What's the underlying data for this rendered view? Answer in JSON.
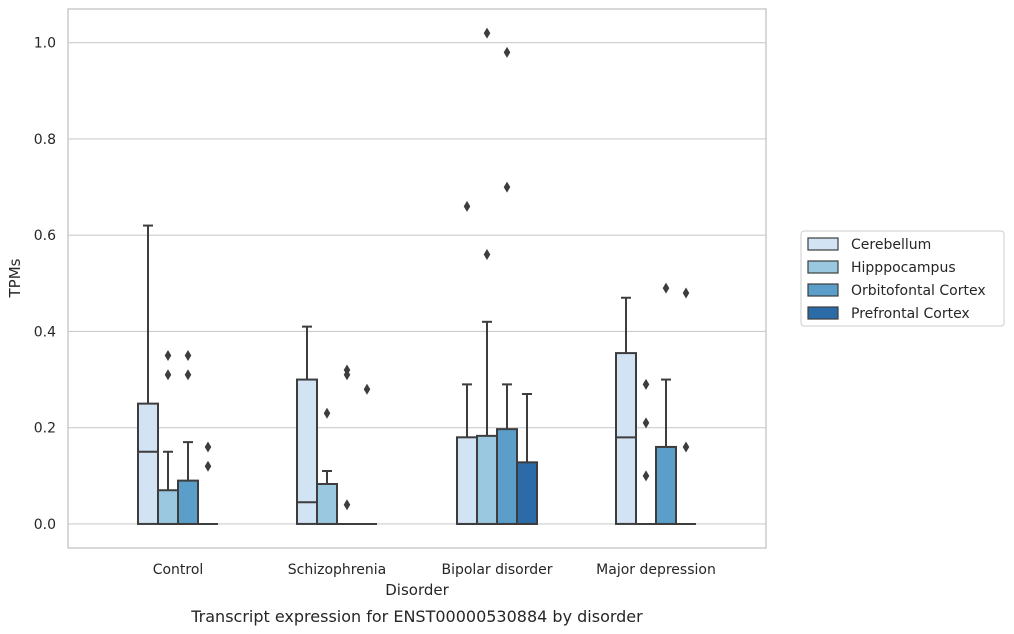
{
  "chart_data": {
    "type": "box",
    "xlabel": "Disorder",
    "ylabel": "TPMs",
    "caption": "Transcript expression for ENST00000530884 by disorder",
    "categories": [
      "Control",
      "Schizophrenia",
      "Bipolar disorder",
      "Major depression"
    ],
    "ylim": [
      -0.05,
      1.07
    ],
    "yticks": [
      0.0,
      0.2,
      0.4,
      0.6,
      0.8,
      1.0
    ],
    "ytick_labels": [
      "0.0",
      "0.2",
      "0.4",
      "0.6",
      "0.8",
      "1.0"
    ],
    "grid": true,
    "legend_position": "right",
    "series": [
      {
        "name": "Cerebellum",
        "color": "#d2e3f3",
        "boxes": [
          {
            "q1": 0.0,
            "median": 0.15,
            "q3": 0.25,
            "whisker_low": 0.0,
            "whisker_high": 0.62,
            "outliers": []
          },
          {
            "q1": 0.0,
            "median": 0.045,
            "q3": 0.3,
            "whisker_low": 0.0,
            "whisker_high": 0.41,
            "outliers": []
          },
          {
            "q1": 0.0,
            "median": 0.0,
            "q3": 0.18,
            "whisker_low": 0.0,
            "whisker_high": 0.29,
            "outliers": [
              0.66
            ]
          },
          {
            "q1": 0.0,
            "median": 0.18,
            "q3": 0.355,
            "whisker_low": 0.0,
            "whisker_high": 0.47,
            "outliers": []
          }
        ]
      },
      {
        "name": "Hipppocampus",
        "color": "#9ac8e0",
        "boxes": [
          {
            "q1": 0.0,
            "median": 0.0,
            "q3": 0.07,
            "whisker_low": 0.0,
            "whisker_high": 0.15,
            "outliers": [
              0.31,
              0.35
            ]
          },
          {
            "q1": 0.0,
            "median": 0.0,
            "q3": 0.083,
            "whisker_low": 0.0,
            "whisker_high": 0.11,
            "outliers": [
              0.23
            ]
          },
          {
            "q1": 0.0,
            "median": 0.0,
            "q3": 0.183,
            "whisker_low": 0.0,
            "whisker_high": 0.42,
            "outliers": [
              0.56,
              1.02
            ]
          },
          {
            "q1": 0.0,
            "median": 0.0,
            "q3": 0.0,
            "whisker_low": 0.0,
            "whisker_high": 0.0,
            "outliers": [
              0.1,
              0.21,
              0.29
            ]
          }
        ]
      },
      {
        "name": "Orbitofontal Cortex",
        "color": "#5b9ec9",
        "boxes": [
          {
            "q1": 0.0,
            "median": 0.0,
            "q3": 0.09,
            "whisker_low": 0.0,
            "whisker_high": 0.17,
            "outliers": [
              0.31,
              0.35
            ]
          },
          {
            "q1": 0.0,
            "median": 0.0,
            "q3": 0.0,
            "whisker_low": 0.0,
            "whisker_high": 0.0,
            "outliers": [
              0.04,
              0.31,
              0.32
            ]
          },
          {
            "q1": 0.0,
            "median": 0.0,
            "q3": 0.197,
            "whisker_low": 0.0,
            "whisker_high": 0.29,
            "outliers": [
              0.7,
              0.98
            ]
          },
          {
            "q1": 0.0,
            "median": 0.0,
            "q3": 0.16,
            "whisker_low": 0.0,
            "whisker_high": 0.3,
            "outliers": [
              0.49
            ]
          }
        ]
      },
      {
        "name": "Prefrontal Cortex",
        "color": "#2b6ba8",
        "boxes": [
          {
            "q1": 0.0,
            "median": 0.0,
            "q3": 0.0,
            "whisker_low": 0.0,
            "whisker_high": 0.0,
            "outliers": [
              0.12,
              0.16
            ]
          },
          {
            "q1": 0.0,
            "median": 0.0,
            "q3": 0.0,
            "whisker_low": 0.0,
            "whisker_high": 0.0,
            "outliers": [
              0.28
            ]
          },
          {
            "q1": 0.0,
            "median": 0.0,
            "q3": 0.128,
            "whisker_low": 0.0,
            "whisker_high": 0.27,
            "outliers": []
          },
          {
            "q1": 0.0,
            "median": 0.0,
            "q3": 0.0,
            "whisker_low": 0.0,
            "whisker_high": 0.0,
            "outliers": [
              0.16,
              0.48
            ]
          }
        ]
      }
    ]
  }
}
